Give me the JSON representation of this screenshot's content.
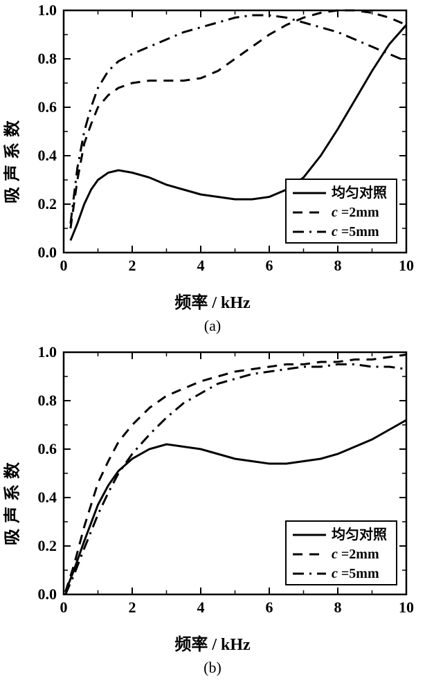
{
  "subplots": [
    "(a)",
    "(b)"
  ],
  "xlabel": "频率 / kHz",
  "ylabel": "吸声系数",
  "axis_color": "#000000",
  "background_color": "#ffffff",
  "line_color": "#000000",
  "line_width": 3,
  "axis_line_width": 2.5,
  "tick_length_major": 10,
  "tick_length_minor": 6,
  "legend": {
    "entries": [
      {
        "label": "均匀对照",
        "dash": "solid"
      },
      {
        "label": "c =2mm",
        "dash": "dash"
      },
      {
        "label": "c =5mm",
        "dash": "dashdot"
      }
    ],
    "border_color": "#000000",
    "bg_color": "#ffffff"
  },
  "a": {
    "xlim": [
      0,
      10
    ],
    "ylim": [
      0,
      1
    ],
    "xticks": [
      0,
      2,
      4,
      6,
      8,
      10
    ],
    "yticks": [
      0.0,
      0.2,
      0.4,
      0.6,
      0.8,
      1.0
    ],
    "xminor": [
      1,
      3,
      5,
      7,
      9
    ],
    "yminor": [
      0.1,
      0.3,
      0.5,
      0.7,
      0.9
    ],
    "series": {
      "solid": [
        [
          0.2,
          0.05
        ],
        [
          0.4,
          0.12
        ],
        [
          0.6,
          0.2
        ],
        [
          0.8,
          0.26
        ],
        [
          1.0,
          0.3
        ],
        [
          1.3,
          0.33
        ],
        [
          1.6,
          0.34
        ],
        [
          2.0,
          0.33
        ],
        [
          2.5,
          0.31
        ],
        [
          3.0,
          0.28
        ],
        [
          3.5,
          0.26
        ],
        [
          4.0,
          0.24
        ],
        [
          4.5,
          0.23
        ],
        [
          5.0,
          0.22
        ],
        [
          5.5,
          0.22
        ],
        [
          6.0,
          0.23
        ],
        [
          6.5,
          0.26
        ],
        [
          7.0,
          0.31
        ],
        [
          7.5,
          0.4
        ],
        [
          8.0,
          0.51
        ],
        [
          8.5,
          0.63
        ],
        [
          9.0,
          0.75
        ],
        [
          9.5,
          0.86
        ],
        [
          10.0,
          0.94
        ]
      ],
      "dash": [
        [
          0.2,
          0.1
        ],
        [
          0.4,
          0.3
        ],
        [
          0.6,
          0.45
        ],
        [
          0.8,
          0.53
        ],
        [
          1.0,
          0.6
        ],
        [
          1.3,
          0.65
        ],
        [
          1.6,
          0.68
        ],
        [
          2.0,
          0.7
        ],
        [
          2.5,
          0.71
        ],
        [
          3.0,
          0.71
        ],
        [
          3.5,
          0.71
        ],
        [
          4.0,
          0.72
        ],
        [
          4.5,
          0.75
        ],
        [
          5.0,
          0.8
        ],
        [
          5.5,
          0.85
        ],
        [
          6.0,
          0.9
        ],
        [
          6.5,
          0.94
        ],
        [
          7.0,
          0.97
        ],
        [
          7.5,
          0.99
        ],
        [
          8.0,
          1.0
        ],
        [
          8.5,
          1.0
        ],
        [
          9.0,
          0.99
        ],
        [
          9.5,
          0.97
        ],
        [
          10.0,
          0.94
        ]
      ],
      "dashdot": [
        [
          0.2,
          0.12
        ],
        [
          0.4,
          0.35
        ],
        [
          0.6,
          0.5
        ],
        [
          0.8,
          0.6
        ],
        [
          1.0,
          0.68
        ],
        [
          1.3,
          0.75
        ],
        [
          1.6,
          0.79
        ],
        [
          2.0,
          0.82
        ],
        [
          2.5,
          0.85
        ],
        [
          3.0,
          0.88
        ],
        [
          3.5,
          0.91
        ],
        [
          4.0,
          0.93
        ],
        [
          4.5,
          0.95
        ],
        [
          5.0,
          0.97
        ],
        [
          5.5,
          0.98
        ],
        [
          6.0,
          0.98
        ],
        [
          6.5,
          0.97
        ],
        [
          7.0,
          0.95
        ],
        [
          7.5,
          0.93
        ],
        [
          8.0,
          0.91
        ],
        [
          8.5,
          0.88
        ],
        [
          9.0,
          0.85
        ],
        [
          9.5,
          0.82
        ],
        [
          10.0,
          0.79
        ]
      ]
    }
  },
  "b": {
    "xlim": [
      0,
      10
    ],
    "ylim": [
      0,
      1
    ],
    "xticks": [
      0,
      2,
      4,
      6,
      8,
      10
    ],
    "yticks": [
      0.0,
      0.2,
      0.4,
      0.6,
      0.8,
      1.0
    ],
    "xminor": [
      1,
      3,
      5,
      7,
      9
    ],
    "yminor": [
      0.1,
      0.3,
      0.5,
      0.7,
      0.9
    ],
    "series": {
      "solid": [
        [
          0.05,
          0.01
        ],
        [
          0.3,
          0.1
        ],
        [
          0.6,
          0.22
        ],
        [
          1.0,
          0.37
        ],
        [
          1.3,
          0.45
        ],
        [
          1.6,
          0.51
        ],
        [
          2.0,
          0.56
        ],
        [
          2.5,
          0.6
        ],
        [
          3.0,
          0.62
        ],
        [
          3.5,
          0.61
        ],
        [
          4.0,
          0.6
        ],
        [
          4.5,
          0.58
        ],
        [
          5.0,
          0.56
        ],
        [
          5.5,
          0.55
        ],
        [
          6.0,
          0.54
        ],
        [
          6.5,
          0.54
        ],
        [
          7.0,
          0.55
        ],
        [
          7.5,
          0.56
        ],
        [
          8.0,
          0.58
        ],
        [
          8.5,
          0.61
        ],
        [
          9.0,
          0.64
        ],
        [
          9.5,
          0.68
        ],
        [
          10.0,
          0.72
        ]
      ],
      "dash": [
        [
          0.05,
          0.01
        ],
        [
          0.3,
          0.12
        ],
        [
          0.6,
          0.28
        ],
        [
          1.0,
          0.46
        ],
        [
          1.3,
          0.55
        ],
        [
          1.6,
          0.63
        ],
        [
          2.0,
          0.7
        ],
        [
          2.5,
          0.77
        ],
        [
          3.0,
          0.82
        ],
        [
          3.5,
          0.85
        ],
        [
          4.0,
          0.88
        ],
        [
          4.5,
          0.9
        ],
        [
          5.0,
          0.92
        ],
        [
          5.5,
          0.93
        ],
        [
          6.0,
          0.94
        ],
        [
          6.5,
          0.95
        ],
        [
          7.0,
          0.95
        ],
        [
          7.5,
          0.96
        ],
        [
          8.0,
          0.96
        ],
        [
          8.5,
          0.97
        ],
        [
          9.0,
          0.97
        ],
        [
          9.5,
          0.98
        ],
        [
          10.0,
          0.99
        ]
      ],
      "dashdot": [
        [
          0.05,
          0.0
        ],
        [
          0.3,
          0.08
        ],
        [
          0.6,
          0.19
        ],
        [
          1.0,
          0.33
        ],
        [
          1.3,
          0.42
        ],
        [
          1.6,
          0.5
        ],
        [
          2.0,
          0.58
        ],
        [
          2.5,
          0.66
        ],
        [
          3.0,
          0.73
        ],
        [
          3.5,
          0.79
        ],
        [
          4.0,
          0.83
        ],
        [
          4.5,
          0.87
        ],
        [
          5.0,
          0.89
        ],
        [
          5.5,
          0.91
        ],
        [
          6.0,
          0.92
        ],
        [
          6.5,
          0.93
        ],
        [
          7.0,
          0.94
        ],
        [
          7.5,
          0.94
        ],
        [
          8.0,
          0.95
        ],
        [
          8.5,
          0.95
        ],
        [
          9.0,
          0.94
        ],
        [
          9.5,
          0.94
        ],
        [
          10.0,
          0.93
        ]
      ]
    }
  }
}
